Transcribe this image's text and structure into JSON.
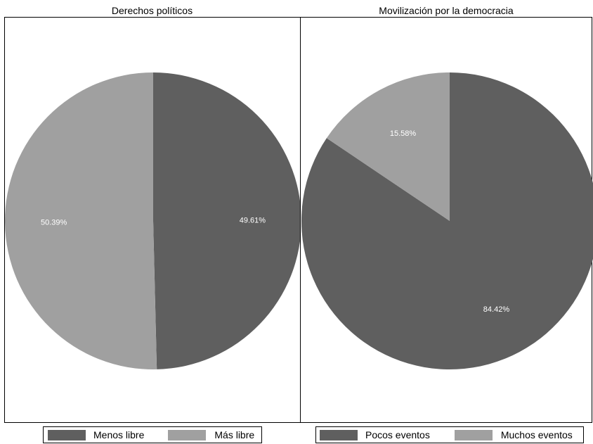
{
  "chart_data": [
    {
      "type": "pie",
      "title": "Derechos políticos",
      "slices": [
        {
          "label": "Menos libre",
          "value": 49.61,
          "text": "49.61%",
          "color": "#5f5f5f"
        },
        {
          "label": "Más libre",
          "value": 50.39,
          "text": "50.39%",
          "color": "#a0a0a0"
        }
      ],
      "legend": {
        "position": "bottom",
        "entries": [
          "Menos libre",
          "Más libre"
        ]
      }
    },
    {
      "type": "pie",
      "title": "Movilización por la democracia",
      "slices": [
        {
          "label": "Pocos eventos",
          "value": 84.42,
          "text": "84.42%",
          "color": "#5f5f5f"
        },
        {
          "label": "Muchos eventos",
          "value": 15.58,
          "text": "15.58%",
          "color": "#a0a0a0"
        }
      ],
      "legend": {
        "position": "bottom",
        "entries": [
          "Pocos eventos",
          "Muchos eventos"
        ]
      }
    }
  ]
}
